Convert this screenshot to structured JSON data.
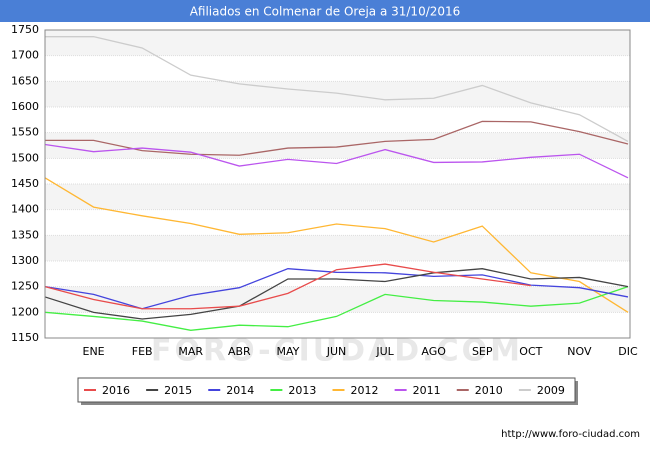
{
  "chart_data": {
    "type": "line",
    "title": "Afiliados en Colmenar de Oreja a 31/10/2016",
    "categories": [
      null,
      "ENE",
      "FEB",
      "MAR",
      "ABR",
      "MAY",
      "JUN",
      "JUL",
      "AGO",
      "SEP",
      "OCT",
      "NOV",
      "DIC"
    ],
    "series": [
      {
        "name": "2016",
        "color": "#e84b4b",
        "values": [
          1250,
          1225,
          1207,
          1207,
          1212,
          1237,
          1283,
          1294,
          1278,
          1265,
          1252,
          null,
          null
        ]
      },
      {
        "name": "2015",
        "color": "#444444",
        "values": [
          1230,
          1200,
          1187,
          1196,
          1212,
          1265,
          1265,
          1260,
          1277,
          1285,
          1265,
          1268,
          1250
        ]
      },
      {
        "name": "2014",
        "color": "#4444dd",
        "values": [
          1250,
          1235,
          1207,
          1233,
          1248,
          1285,
          1278,
          1277,
          1270,
          1273,
          1253,
          1248,
          1230
        ]
      },
      {
        "name": "2013",
        "color": "#44ee44",
        "values": [
          1200,
          1192,
          1183,
          1165,
          1175,
          1172,
          1192,
          1235,
          1223,
          1220,
          1212,
          1218,
          1250
        ]
      },
      {
        "name": "2012",
        "color": "#ffb733",
        "values": [
          1462,
          1405,
          1388,
          1373,
          1352,
          1355,
          1372,
          1363,
          1337,
          1368,
          1277,
          1260,
          1200
        ]
      },
      {
        "name": "2011",
        "color": "#bb55ee",
        "values": [
          1527,
          1513,
          1520,
          1512,
          1485,
          1498,
          1490,
          1517,
          1492,
          1493,
          1502,
          1508,
          1462
        ]
      },
      {
        "name": "2010",
        "color": "#aa6666",
        "values": [
          1535,
          1535,
          1515,
          1508,
          1506,
          1520,
          1522,
          1533,
          1537,
          1572,
          1571,
          1552,
          1528
        ]
      },
      {
        "name": "2009",
        "color": "#cccccc",
        "values": [
          1737,
          1737,
          1715,
          1662,
          1645,
          1635,
          1627,
          1614,
          1617,
          1642,
          1608,
          1585,
          1533
        ]
      }
    ],
    "ylim": [
      1150,
      1750
    ],
    "yticks": [
      1150,
      1200,
      1250,
      1300,
      1350,
      1400,
      1450,
      1500,
      1550,
      1600,
      1650,
      1700,
      1750
    ],
    "grid": true,
    "legend": "bottom",
    "watermark": "FORO-CIUDAD.COM",
    "source": "http://www.foro-ciudad.com"
  }
}
